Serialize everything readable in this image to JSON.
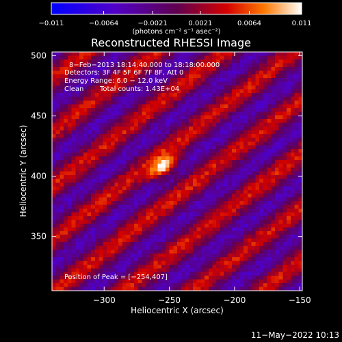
{
  "chart_data": {
    "type": "heatmap",
    "title": "Reconstructed RHESSI Image",
    "xlabel": "Heliocentric X (arcsec)",
    "ylabel": "Heliocentric Y (arcsec)",
    "xlim": [
      -340,
      -148
    ],
    "ylim": [
      305,
      503
    ],
    "x_ticks": [
      -300,
      -250,
      -200,
      -150
    ],
    "x_tick_labels": [
      "−300",
      "−250",
      "−200",
      "−150"
    ],
    "y_ticks": [
      350,
      400,
      450,
      500
    ],
    "y_tick_labels": [
      "350",
      "400",
      "450",
      "500"
    ],
    "colorbar": {
      "label": "(photons cm⁻² s⁻¹ asec⁻²)",
      "range": [
        -0.011,
        0.011
      ],
      "ticks": [
        -0.011,
        -0.0064,
        -0.0021,
        0.0021,
        0.0064,
        0.011
      ],
      "tick_labels": [
        "−0.011",
        "−0.0064",
        "−0.0021",
        "0.0021",
        "0.0064",
        "0.011"
      ]
    },
    "annotations": [
      "8−Feb−2013 18:14:40.000 to 18:18:00.000",
      "Detectors: 3F 4F 5F 6F 7F 8F, Att 0",
      "Energy Range: 6.0 − 12.0 keV",
      "Clean",
      "Total counts: 1.43E+04"
    ],
    "peak_label": "Position of Peak = [−254,407]",
    "peak": {
      "x": -254,
      "y": 407
    },
    "source_sigma_arcsec": [
      5,
      9
    ],
    "source_angle_deg": 40,
    "background": {
      "stripe_period_arcsec": 34,
      "stripe_direction_deg": 40,
      "stripe_amplitude": 0.0045,
      "noise_amplitude": 0.0015
    }
  },
  "timestamp": "11−May−2022 10:13"
}
